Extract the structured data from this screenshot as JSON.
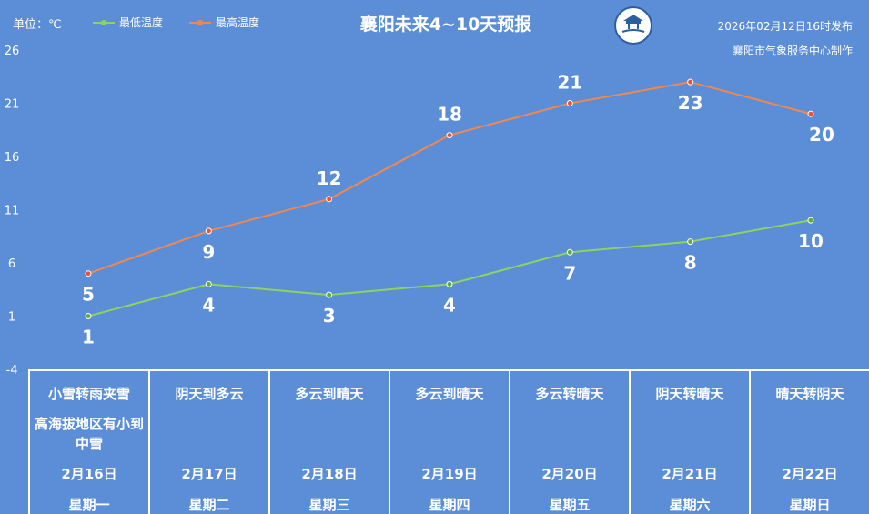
{
  "header": {
    "unit_label": "单位：℃",
    "title": "襄阳未来4~10天预报",
    "publish_time": "2026年02月12日16时发布",
    "publisher": "襄阳市气象服务中心制作",
    "logo_icon": "xiangyang-weather-logo-icon"
  },
  "colors": {
    "background": "#5b8ed6",
    "low_line": "#8ed35e",
    "high_line": "#f0884e",
    "high_point": "#e8543a",
    "low_point": "#5fae3a"
  },
  "chart_data": {
    "type": "line",
    "categories": [
      "2月16日",
      "2月17日",
      "2月18日",
      "2月19日",
      "2月20日",
      "2月21日",
      "2月22日"
    ],
    "series": [
      {
        "name": "最低温度",
        "values": [
          1,
          4,
          3,
          4,
          7,
          8,
          10
        ]
      },
      {
        "name": "最高温度",
        "values": [
          5,
          9,
          12,
          18,
          21,
          23,
          20
        ]
      }
    ],
    "ylim": [
      -4,
      26
    ],
    "yticks": [
      -4,
      1,
      6,
      11,
      16,
      21,
      26
    ],
    "grid": false,
    "legend": "top-left"
  },
  "days": [
    {
      "weather": "小雪转雨夹雪",
      "note": "高海拔地区有小到中雪",
      "date": "2月16日",
      "week": "星期一"
    },
    {
      "weather": "阴天到多云",
      "note": "",
      "date": "2月17日",
      "week": "星期二"
    },
    {
      "weather": "多云到晴天",
      "note": "",
      "date": "2月18日",
      "week": "星期三"
    },
    {
      "weather": "多云到晴天",
      "note": "",
      "date": "2月19日",
      "week": "星期四"
    },
    {
      "weather": "多云转晴天",
      "note": "",
      "date": "2月20日",
      "week": "星期五"
    },
    {
      "weather": "阴天转晴天",
      "note": "",
      "date": "2月21日",
      "week": "星期六"
    },
    {
      "weather": "晴天转阴天",
      "note": "",
      "date": "2月22日",
      "week": "星期日"
    }
  ]
}
